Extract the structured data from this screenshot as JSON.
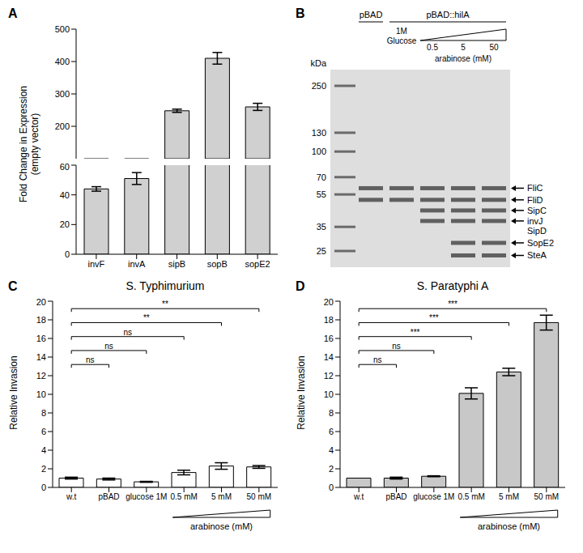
{
  "chart_data": [
    {
      "panel": "A",
      "type": "bar",
      "ylabel": [
        "Fold Change in Expression",
        "(empty vector)"
      ],
      "categories": [
        "invF",
        "invA",
        "sipB",
        "sopB",
        "sopE2"
      ],
      "values": [
        44,
        51,
        248,
        410,
        260
      ],
      "errors": [
        1.5,
        4,
        5,
        18,
        11
      ],
      "color": "#d0d0d0",
      "ylim": [
        0,
        500
      ],
      "ybreak": [
        60,
        100
      ],
      "yticks": [
        0,
        20,
        40,
        60,
        100,
        200,
        300,
        400,
        500
      ]
    },
    {
      "panel": "C",
      "type": "bar",
      "title": "S. Typhimurium",
      "ylabel": "Relative Invasion",
      "categories": [
        "w.t",
        "pBAD",
        "glucose 1M",
        "0.5 mM",
        "5 mM",
        "50 mM"
      ],
      "values": [
        1.0,
        0.9,
        0.6,
        1.6,
        2.3,
        2.2
      ],
      "errors": [
        0.1,
        0.1,
        0.05,
        0.25,
        0.35,
        0.15
      ],
      "color": "#ffffff",
      "ylim": [
        0,
        20
      ],
      "yticks": [
        0,
        2,
        4,
        6,
        8,
        10,
        12,
        14,
        16,
        18,
        20
      ],
      "comparisons": [
        {
          "from": "w.t",
          "to": "pBAD",
          "label": "ns"
        },
        {
          "from": "w.t",
          "to": "glucose 1M",
          "label": "ns"
        },
        {
          "from": "w.t",
          "to": "0.5 mM",
          "label": "ns"
        },
        {
          "from": "w.t",
          "to": "5 mM",
          "label": "**"
        },
        {
          "from": "w.t",
          "to": "50 mM",
          "label": "**"
        }
      ],
      "annotation": {
        "text": "arabinose (mM)",
        "from": "0.5 mM",
        "to": "50 mM"
      }
    },
    {
      "panel": "D",
      "type": "bar",
      "title": "S. Paratyphi A",
      "ylabel": "Relative Invasion",
      "categories": [
        "w.t",
        "pBAD",
        "glucose 1M",
        "0.5 mM",
        "5 mM",
        "50 mM"
      ],
      "values": [
        1.0,
        1.0,
        1.2,
        10.1,
        12.4,
        17.7
      ],
      "errors": [
        0,
        0.1,
        0.05,
        0.6,
        0.4,
        0.8
      ],
      "color": "#c8c8c8",
      "ylim": [
        0,
        20
      ],
      "yticks": [
        0,
        2,
        4,
        6,
        8,
        10,
        12,
        14,
        16,
        18,
        20
      ],
      "comparisons": [
        {
          "from": "w.t",
          "to": "pBAD",
          "label": "ns"
        },
        {
          "from": "w.t",
          "to": "glucose 1M",
          "label": "ns"
        },
        {
          "from": "w.t",
          "to": "0.5 mM",
          "label": "***"
        },
        {
          "from": "w.t",
          "to": "5 mM",
          "label": "***"
        },
        {
          "from": "w.t",
          "to": "50 mM",
          "label": "***"
        }
      ],
      "annotation": {
        "text": "arabinose (mM)",
        "from": "0.5 mM",
        "to": "50 mM"
      }
    }
  ],
  "gel": {
    "panel": "B",
    "unit": "kDa",
    "markers": [
      250,
      130,
      100,
      70,
      55,
      35,
      25
    ],
    "lanes": [
      {
        "group": "pBAD",
        "bands": [
          "FliC",
          "FliD"
        ]
      },
      {
        "group": "pBAD::hilA",
        "label": "1M Glucose",
        "bands": [
          "FliC",
          "FliD"
        ]
      },
      {
        "group": "pBAD::hilA",
        "label": "0.5",
        "bands": [
          "FliC",
          "FliD",
          "SipC",
          "invJ SipD"
        ]
      },
      {
        "group": "pBAD::hilA",
        "label": "5",
        "bands": [
          "FliC",
          "FliD",
          "SipC",
          "invJ SipD",
          "SopE2",
          "SteA"
        ]
      },
      {
        "group": "pBAD::hilA",
        "label": "50",
        "bands": [
          "FliC",
          "FliD",
          "SipC",
          "invJ SipD",
          "SopE2",
          "SteA"
        ]
      }
    ],
    "gradient": {
      "text": "arabinose (mM)",
      "from": "0.5",
      "to": "50"
    },
    "proteins": [
      {
        "name": "FliC",
        "kDa": 60
      },
      {
        "name": "FliD",
        "kDa": 51
      },
      {
        "name": "SipC",
        "kDa": 44
      },
      {
        "name": "invJ SipD",
        "kDa": 38
      },
      {
        "name": "SopE2",
        "kDa": 28
      },
      {
        "name": "SteA",
        "kDa": 23.5
      }
    ]
  }
}
